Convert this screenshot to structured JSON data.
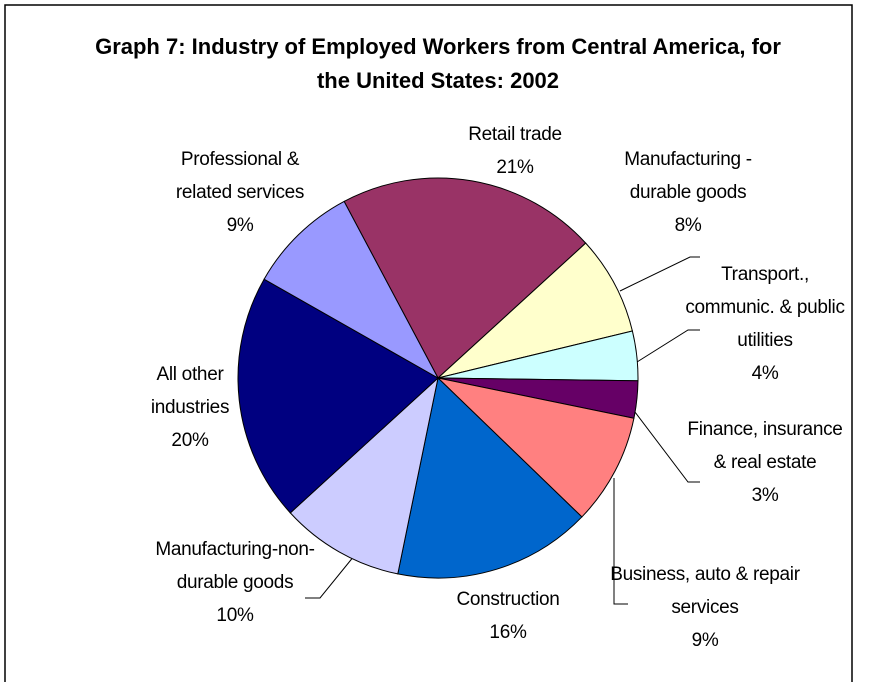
{
  "chart_data": {
    "type": "pie",
    "title": "Graph 7: Industry of Employed Workers from Central America, for the United States: 2002",
    "categories": [
      "Retail trade",
      "Manufacturing - durable goods",
      "Transport., communic. & public utilities",
      "Finance, insurance & real estate",
      "Business, auto & repair services",
      "Construction",
      "Manufacturing-non-durable goods",
      "All other industries",
      "Professional & related services"
    ],
    "values": [
      21,
      8,
      4,
      3,
      9,
      16,
      10,
      20,
      9
    ],
    "value_labels": [
      "21%",
      "8%",
      "4%",
      "3%",
      "9%",
      "16%",
      "10%",
      "20%",
      "9%"
    ],
    "colors": [
      "#993366",
      "#ffffcc",
      "#ccffff",
      "#660066",
      "#ff8080",
      "#0066cc",
      "#ccccff",
      "#000080",
      "#9999ff"
    ]
  }
}
